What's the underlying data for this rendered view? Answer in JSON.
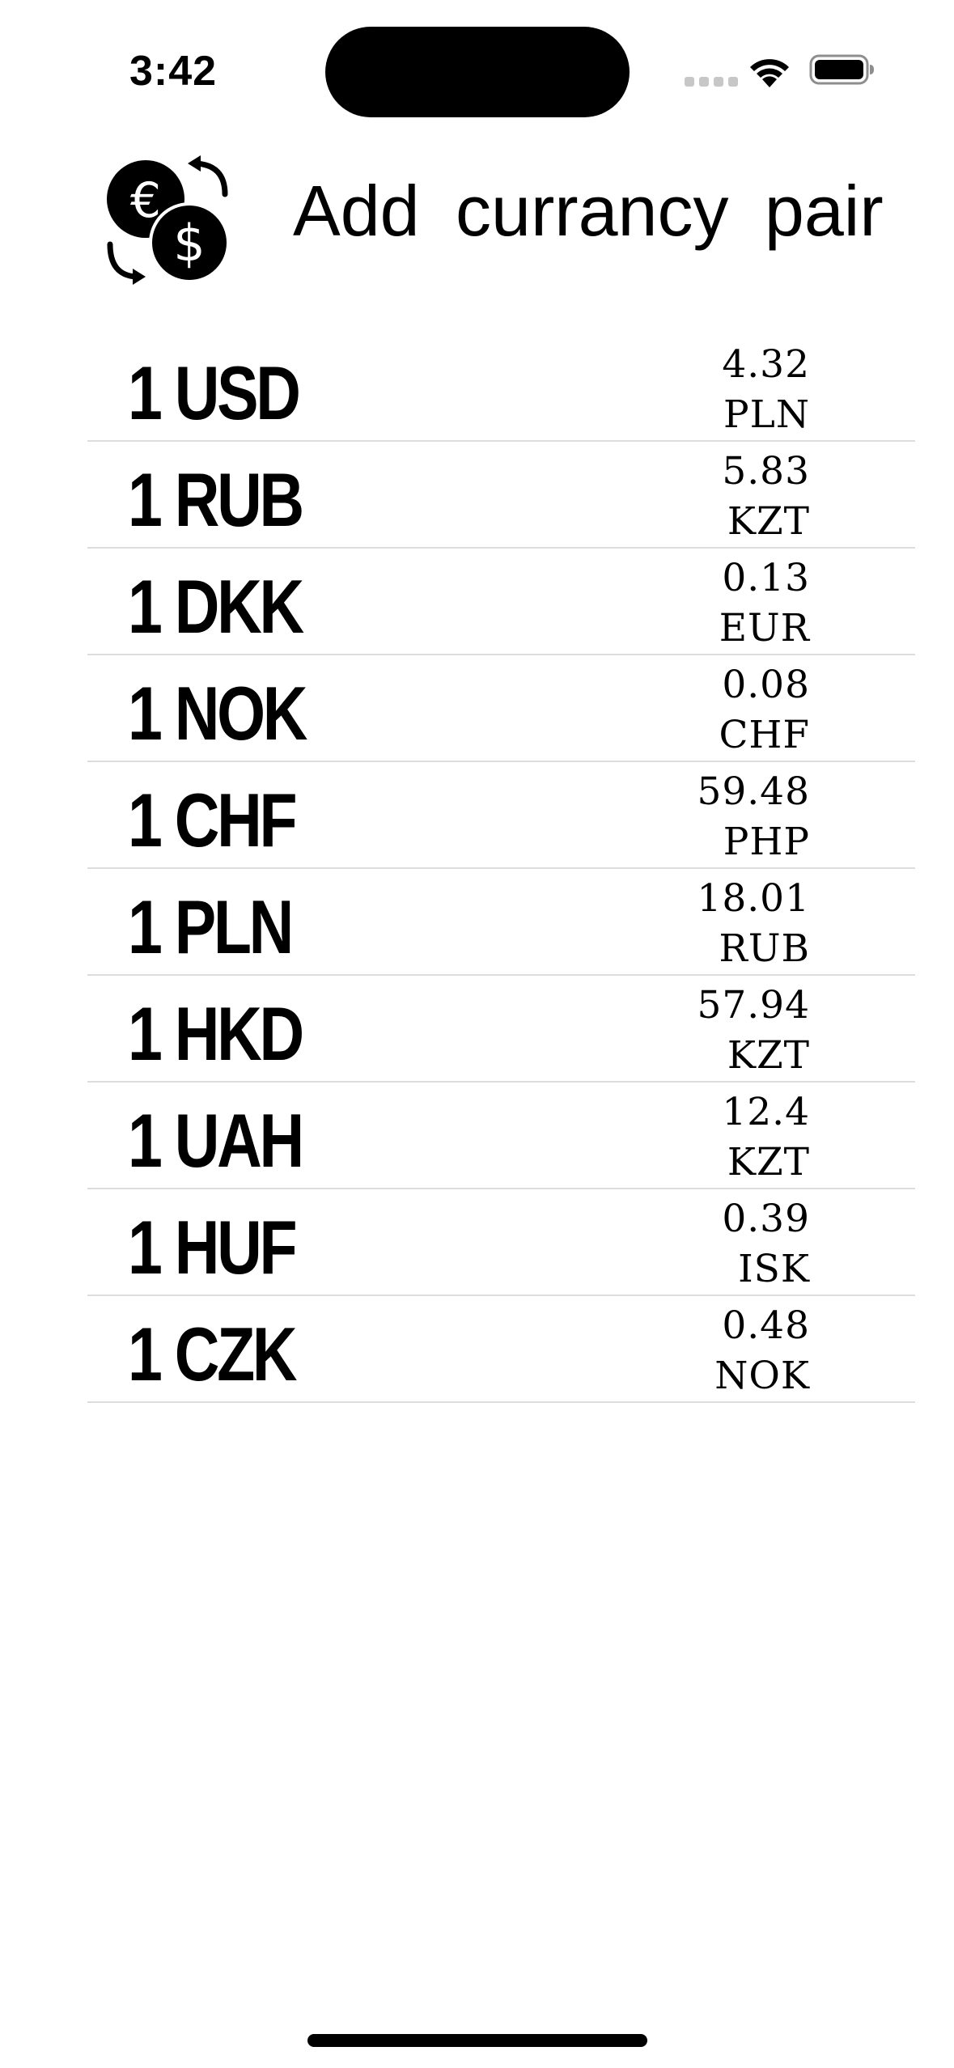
{
  "status_bar": {
    "time": "3:42"
  },
  "header": {
    "icon": "currency-exchange-icon",
    "title": "Add currancy pair"
  },
  "pairs": [
    {
      "from": "1 USD",
      "rate": "4.32",
      "to": "PLN"
    },
    {
      "from": "1 RUB",
      "rate": "5.83",
      "to": "KZT"
    },
    {
      "from": "1 DKK",
      "rate": "0.13",
      "to": "EUR"
    },
    {
      "from": "1 NOK",
      "rate": "0.08",
      "to": "CHF"
    },
    {
      "from": "1 CHF",
      "rate": "59.48",
      "to": "PHP"
    },
    {
      "from": "1 PLN",
      "rate": "18.01",
      "to": "RUB"
    },
    {
      "from": "1 HKD",
      "rate": "57.94",
      "to": "KZT"
    },
    {
      "from": "1 UAH",
      "rate": "12.4",
      "to": "KZT"
    },
    {
      "from": "1 HUF",
      "rate": "0.39",
      "to": "ISK"
    },
    {
      "from": "1 CZK",
      "rate": "0.48",
      "to": "NOK"
    }
  ]
}
